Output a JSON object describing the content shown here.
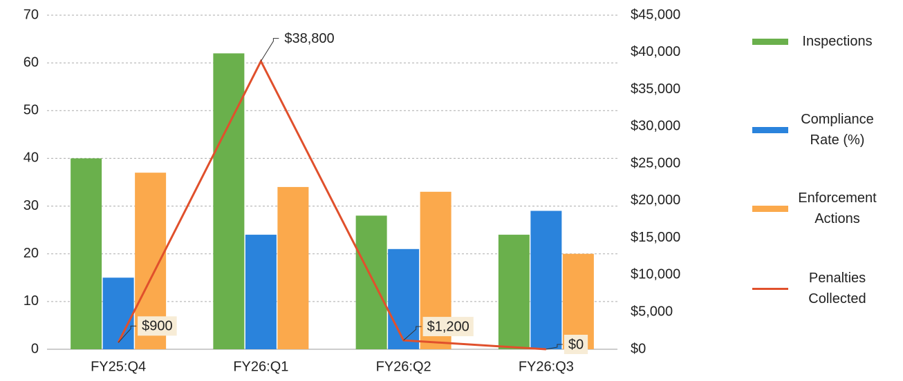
{
  "chart_data": {
    "type": "bar",
    "categories": [
      "FY25:Q4",
      "FY26:Q1",
      "FY26:Q2",
      "FY26:Q3"
    ],
    "series": [
      {
        "name": "Inspections",
        "color": "#6ab04c",
        "values": [
          40,
          62,
          28,
          24
        ]
      },
      {
        "name": "Compliance Rate (%)",
        "color": "#2a83dc",
        "values": [
          15,
          24,
          21,
          29
        ]
      },
      {
        "name": "Enforcement Actions",
        "color": "#fba94c",
        "values": [
          37,
          34,
          33,
          20
        ]
      },
      {
        "name": "Penalties Collected",
        "color": "#e0502c",
        "type": "line",
        "axis": "y2",
        "values": [
          900,
          38800,
          1200,
          0
        ],
        "value_labels": [
          "$900",
          "$38,800",
          "$1,200",
          "$0"
        ]
      }
    ],
    "ylim": [
      0,
      70
    ],
    "yticks": [
      0,
      10,
      20,
      30,
      40,
      50,
      60,
      70
    ],
    "y2lim": [
      0,
      45000
    ],
    "y2ticks": [
      {
        "value": 0,
        "label": "$0"
      },
      {
        "value": 5000,
        "label": "$5,000"
      },
      {
        "value": 10000,
        "label": "$10,000"
      },
      {
        "value": 15000,
        "label": "$15,000"
      },
      {
        "value": 20000,
        "label": "$20,000"
      },
      {
        "value": 25000,
        "label": "$25,000"
      },
      {
        "value": 30000,
        "label": "$30,000"
      },
      {
        "value": 35000,
        "label": "$35,000"
      },
      {
        "value": 40000,
        "label": "$40,000"
      },
      {
        "value": 45000,
        "label": "$45,000"
      }
    ],
    "grid": true,
    "legend": "right"
  }
}
